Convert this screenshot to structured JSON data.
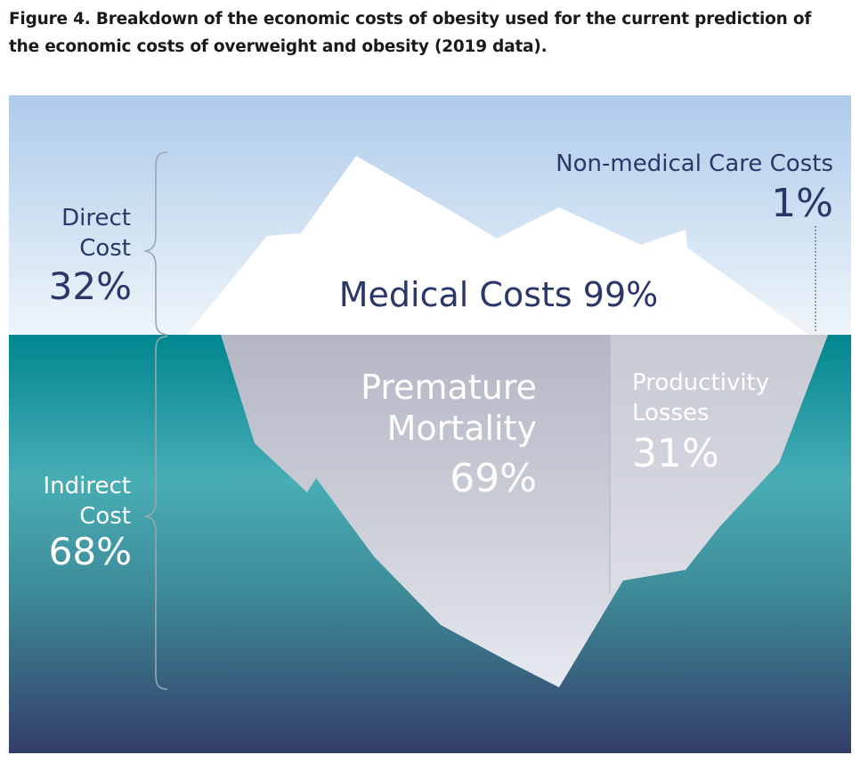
{
  "caption": "Figure 4. Breakdown of the economic costs of obesity used for the current prediction of the economic costs of overweight and obesity (2019 data).",
  "direct": {
    "label_line1": "Direct",
    "label_line2": "Cost",
    "percent": "32%"
  },
  "indirect": {
    "label_line1": "Indirect",
    "label_line2": "Cost",
    "percent": "68%"
  },
  "medical": {
    "label": "Medical Costs 99%"
  },
  "non_medical": {
    "label": "Non-medical Care Costs",
    "percent": "1%"
  },
  "premature": {
    "line1": "Premature",
    "line2": "Mortality",
    "percent": "69%"
  },
  "productivity": {
    "line1": "Productivity",
    "line2": "Losses",
    "percent": "31%"
  },
  "colors": {
    "title_text": "#1a1a1a",
    "navy_text": "#2b3768",
    "sky_top": "#aecbea",
    "sky_bottom": "#e9f2f9",
    "water_top": "#00868f",
    "water_mid": "#4aaeb6",
    "water_bottom": "#353f69",
    "ice_above": "#ffffff",
    "ice_below": "#c9cbd6",
    "bracket": "#9aa6b2"
  }
}
